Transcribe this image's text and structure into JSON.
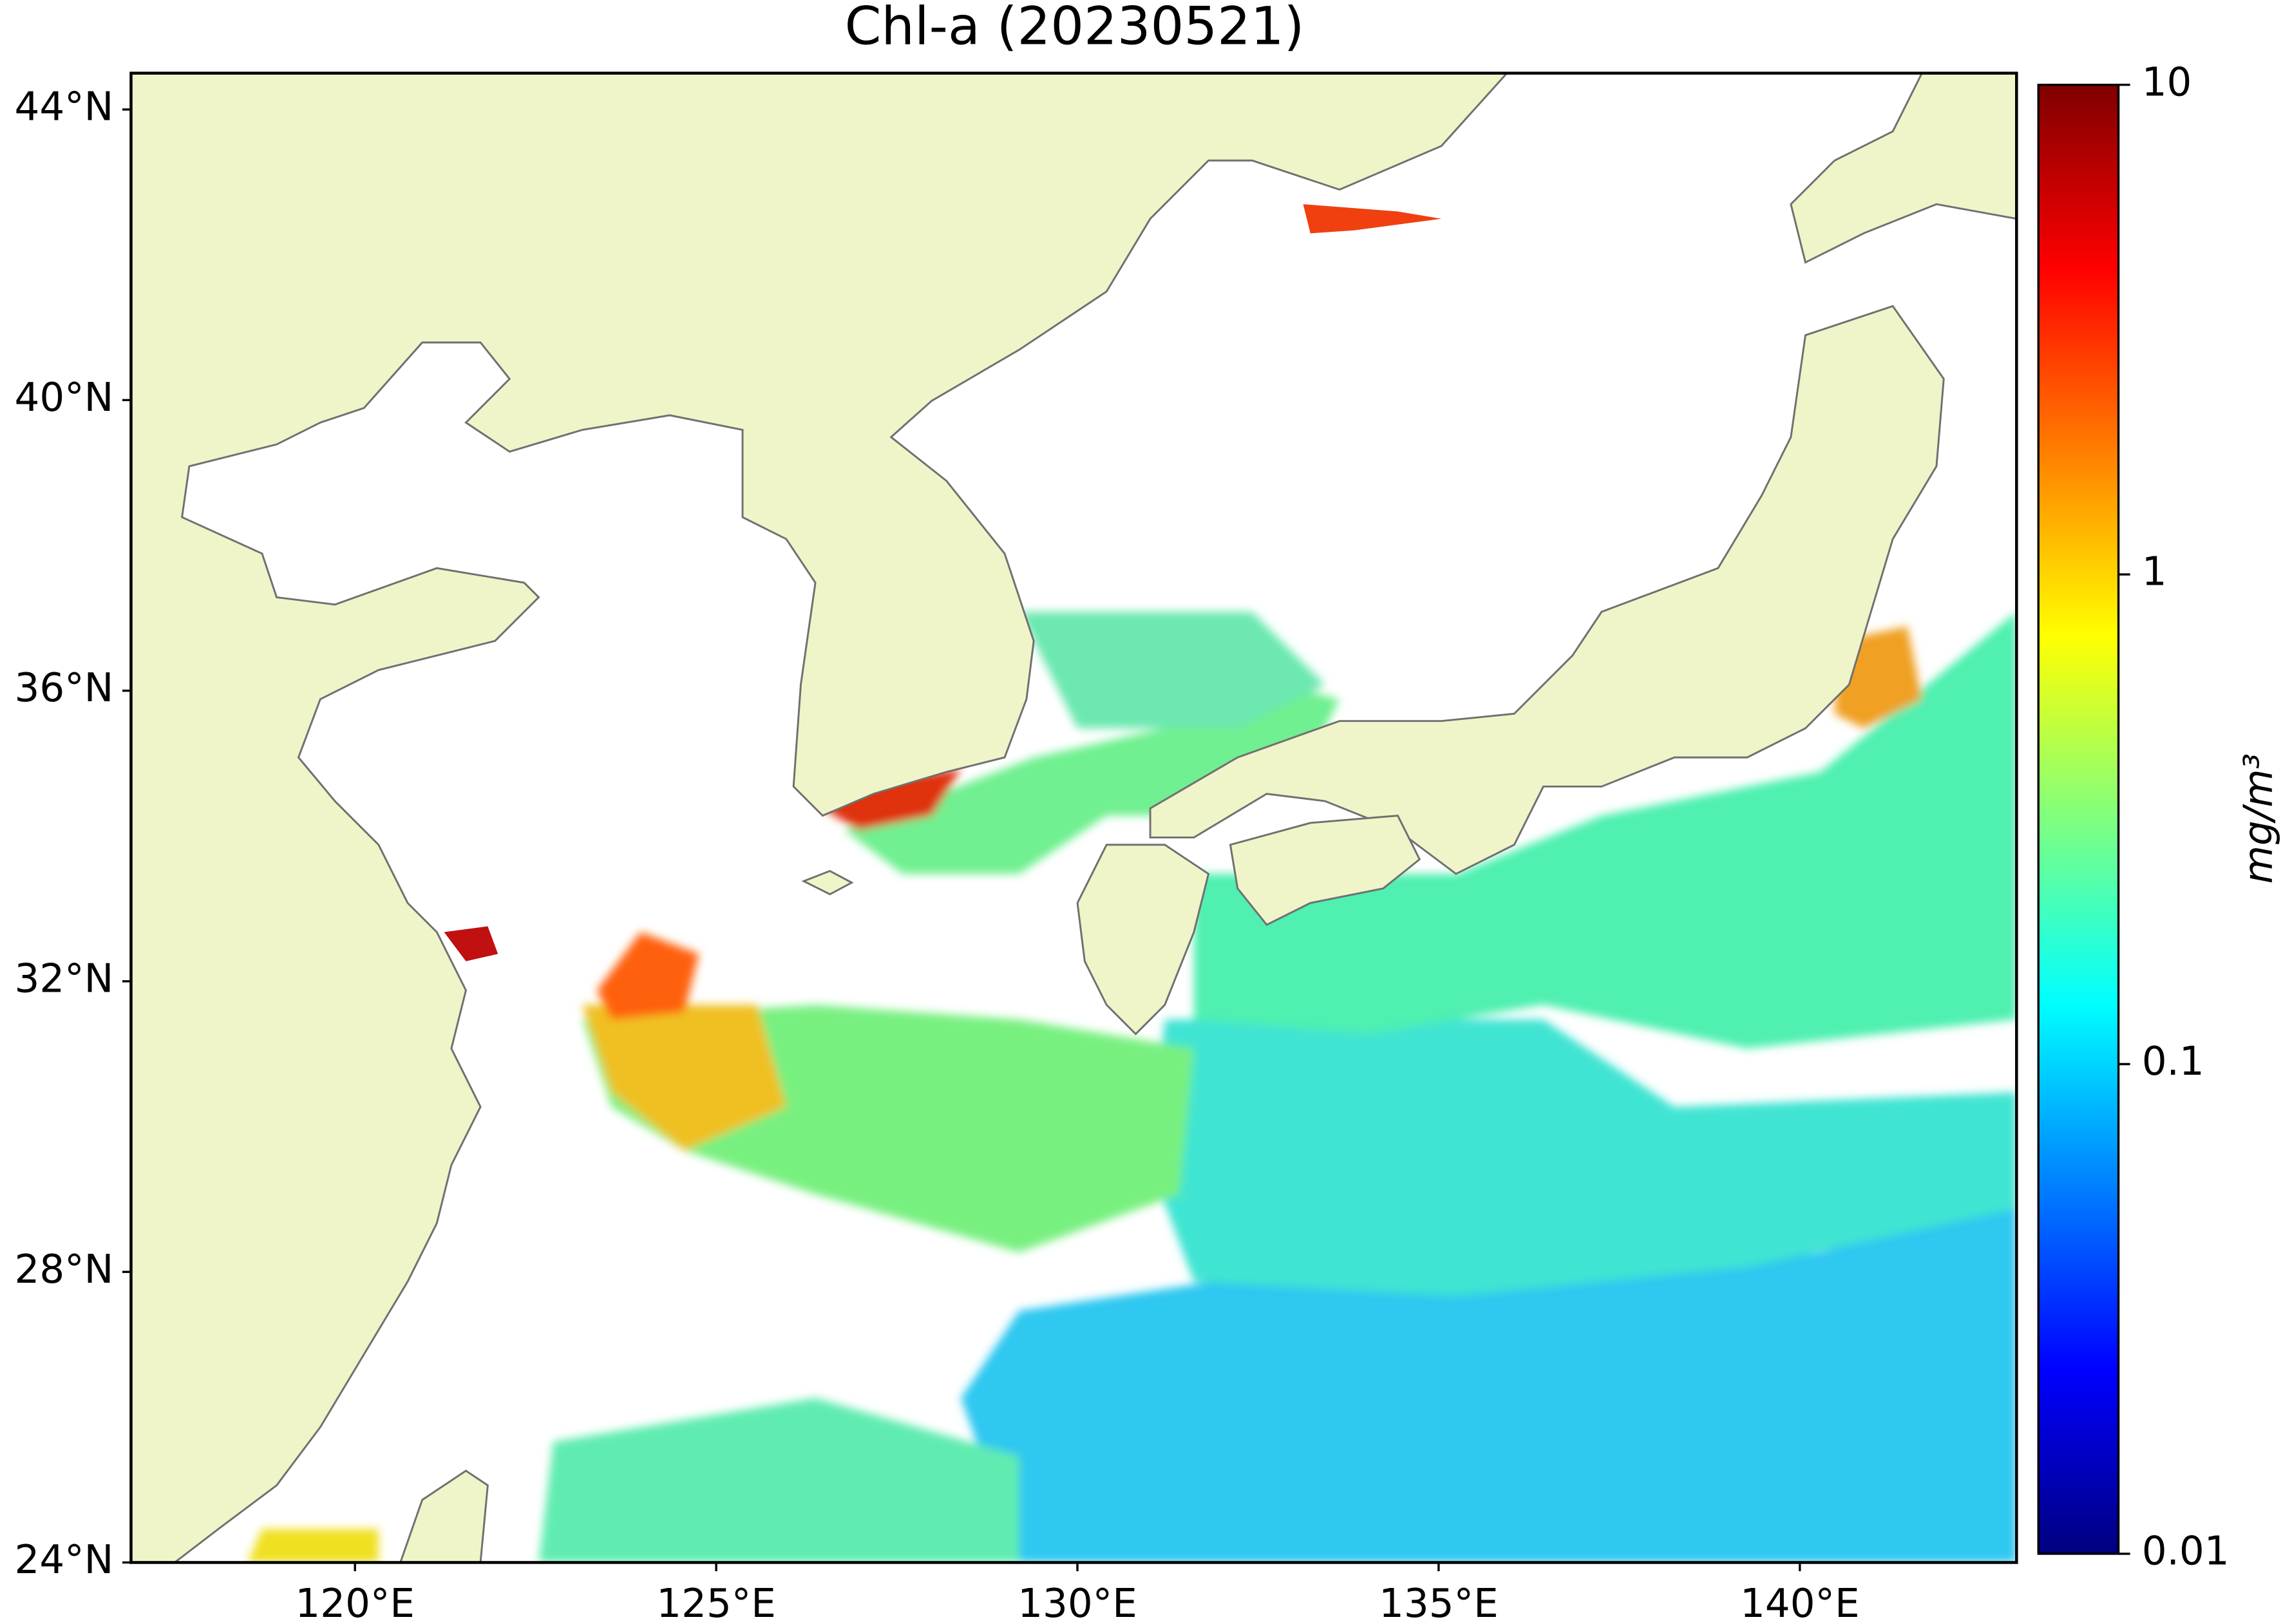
{
  "title": "Chl-a (20230521)",
  "map": {
    "xlim": [
      116.9,
      143.0
    ],
    "ylim": [
      24,
      44.5
    ],
    "lat_ticks": [
      {
        "value": 24,
        "label": "24°N"
      },
      {
        "value": 28,
        "label": "28°N"
      },
      {
        "value": 32,
        "label": "32°N"
      },
      {
        "value": 36,
        "label": "36°N"
      },
      {
        "value": 40,
        "label": "40°N"
      },
      {
        "value": 44,
        "label": "44°N"
      }
    ],
    "lon_ticks": [
      {
        "value": 120,
        "label": "120°E"
      },
      {
        "value": 125,
        "label": "125°E"
      },
      {
        "value": 130,
        "label": "130°E"
      },
      {
        "value": 135,
        "label": "135°E"
      },
      {
        "value": 140,
        "label": "140°E"
      }
    ]
  },
  "colorbar": {
    "label": "mg/m³",
    "log": true,
    "lim": [
      0.01,
      10
    ],
    "ticks": [
      0.01,
      0.1,
      1,
      10
    ],
    "colors": [
      "#00007f",
      "#0000ff",
      "#007fff",
      "#00ffff",
      "#7fff7f",
      "#ffff00",
      "#ff7f00",
      "#ff0000",
      "#7f0000"
    ]
  }
}
